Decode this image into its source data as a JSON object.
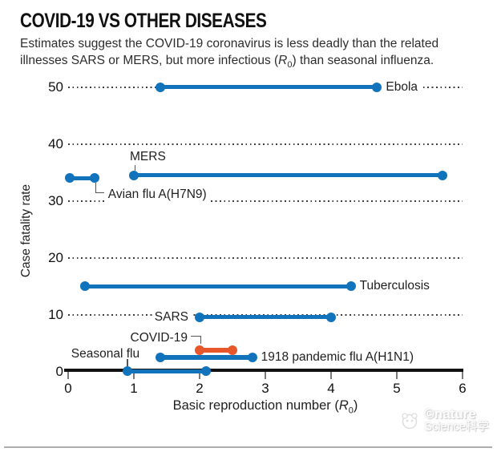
{
  "header": {
    "title": "COVID-19 VS OTHER DISEASES",
    "subtitle_line1": "Estimates suggest the COVID-19 coronavirus is less deadly than the related",
    "subtitle_line2_pre": "illnesses SARS or MERS, but more infectious (",
    "subtitle_r": "R",
    "subtitle_sub": "0",
    "subtitle_line2_post": ") than seasonal influenza."
  },
  "chart_data": {
    "type": "dumbbell-range",
    "title": "COVID-19 VS OTHER DISEASES",
    "ylabel": "Case fatality rate",
    "xlabel": "Basic reproduction number (R0)",
    "xaxis_title": {
      "pre": "Basic reproduction number (",
      "r": "R",
      "sub": "0",
      "post": ")"
    },
    "xlim": [
      0,
      6
    ],
    "ylim": [
      0,
      50
    ],
    "x_ticks": [
      0,
      1,
      2,
      3,
      4,
      5,
      6
    ],
    "y_ticks": [
      0,
      10,
      20,
      30,
      40,
      50
    ],
    "grid": "horizontal-dotted",
    "legend": "none",
    "series": [
      {
        "name": "Ebola",
        "r0": [
          1.4,
          4.7
        ],
        "cfr": 50,
        "color": "#1173bc",
        "label_placement": "right"
      },
      {
        "name": "MERS",
        "r0": [
          1.0,
          5.7
        ],
        "cfr": 34.5,
        "color": "#1173bc",
        "label_placement": "above-start"
      },
      {
        "name": "Avian flu A(H7N9)",
        "r0": [
          0.02,
          0.4
        ],
        "cfr": 34,
        "color": "#1173bc",
        "label_placement": "below-end-elbow"
      },
      {
        "name": "Tuberculosis",
        "r0": [
          0.25,
          4.3
        ],
        "cfr": 15,
        "color": "#1173bc",
        "label_placement": "right"
      },
      {
        "name": "SARS",
        "r0": [
          2.0,
          4.0
        ],
        "cfr": 9.6,
        "color": "#1173bc",
        "label_placement": "left"
      },
      {
        "name": "COVID-19",
        "r0": [
          2.0,
          2.5
        ],
        "cfr": 3.8,
        "color": "#e8562b",
        "label_placement": "above-left-elbow"
      },
      {
        "name": "1918 pandemic flu A(H1N1)",
        "r0": [
          1.4,
          2.8
        ],
        "cfr": 2.5,
        "color": "#1173bc",
        "label_placement": "right"
      },
      {
        "name": "Seasonal flu",
        "r0": [
          0.9,
          2.1
        ],
        "cfr": 0.1,
        "color": "#1173bc",
        "label_placement": "above-start-tick"
      }
    ]
  },
  "colors": {
    "blue": "#1173bc",
    "orange": "#e8562b",
    "grid_dot": "#3d3d3d",
    "axis": "#121212",
    "connector": "#555555",
    "text": "#1f1f1f"
  },
  "watermark": {
    "line1": "©nature",
    "line2": "Science科学"
  }
}
